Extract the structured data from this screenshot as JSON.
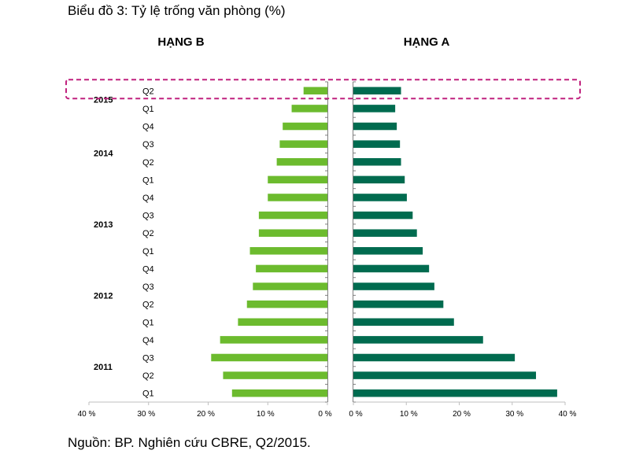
{
  "title": "Biểu đồ 3: Tỷ lệ trống văn phòng (%)",
  "source": "Nguồn: BP. Nghiên cứu CBRE, Q2/2015.",
  "chart_data": {
    "type": "bar",
    "orientation": "horizontal-mirrored",
    "categories": [
      "Q1 2011",
      "Q2 2011",
      "Q3 2011",
      "Q4 2011",
      "Q1 2012",
      "Q2 2012",
      "Q3 2012",
      "Q4 2012",
      "Q1 2013",
      "Q2 2013",
      "Q3 2013",
      "Q4 2013",
      "Q1 2014",
      "Q2 2014",
      "Q3 2014",
      "Q4 2014",
      "Q1 2015",
      "Q2 2015"
    ],
    "quarter_labels": [
      "Q1",
      "Q2",
      "Q3",
      "Q4",
      "Q1",
      "Q2",
      "Q3",
      "Q4",
      "Q1",
      "Q2",
      "Q3",
      "Q4",
      "Q1",
      "Q2",
      "Q3",
      "Q4",
      "Q1",
      "Q2"
    ],
    "year_labels": [
      {
        "label": "2011",
        "center_index": 1.5
      },
      {
        "label": "2012",
        "center_index": 5.5
      },
      {
        "label": "2013",
        "center_index": 9.5
      },
      {
        "label": "2014",
        "center_index": 13.5
      },
      {
        "label": "2015",
        "center_index": 16.5
      }
    ],
    "series": [
      {
        "name": "HẠNG B",
        "color": "#6cbb2e",
        "values": [
          16.0,
          17.5,
          19.5,
          18.0,
          15.0,
          13.5,
          12.5,
          12.0,
          13.0,
          11.5,
          11.5,
          10.0,
          10.0,
          8.5,
          8.0,
          7.5,
          6.0,
          4.0
        ]
      },
      {
        "name": "HẠNG A",
        "color": "#006b4f",
        "values": [
          38.5,
          34.5,
          30.5,
          24.5,
          19.0,
          17.0,
          15.3,
          14.3,
          13.1,
          12.0,
          11.2,
          10.1,
          9.7,
          9.0,
          8.8,
          8.2,
          7.9,
          9.0
        ]
      }
    ],
    "xlim": [
      0,
      40
    ],
    "xticks": [
      {
        "value": 40,
        "label": "40  %"
      },
      {
        "value": 30,
        "label": "30  %"
      },
      {
        "value": 20,
        "label": "20  %"
      },
      {
        "value": 10,
        "label": "10  %"
      },
      {
        "value": 0,
        "label": "0  %"
      }
    ],
    "highlight": {
      "category": "Q2 2015",
      "style": "dashed",
      "color": "#c0217e"
    }
  }
}
